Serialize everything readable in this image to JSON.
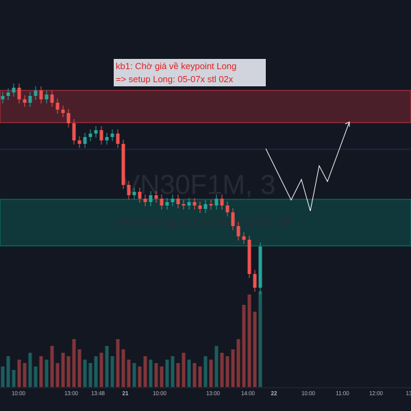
{
  "chart_data": {
    "type": "candlestick",
    "watermark": "VN30F1M, 3",
    "watermark_subtitle": "Hợp đồng tương lai VN30F1M",
    "annotation": [
      "kb1: Chờ giá về keypoint Long",
      "=> setup Long: 05-07x stl 02x"
    ],
    "xticks": [
      "10:00",
      "13:00",
      "13:48",
      "21",
      "10:00",
      "13:00",
      "14:00",
      "22",
      "10:00",
      "11:00",
      "12:00",
      "13"
    ],
    "open": [
      455,
      460,
      465,
      472,
      455,
      450,
      460,
      468,
      455,
      462,
      450,
      440,
      435,
      420,
      395,
      390,
      400,
      405,
      410,
      395,
      400,
      405,
      390,
      330,
      315,
      320,
      310,
      305,
      315,
      310,
      300,
      305,
      310,
      302,
      300,
      305,
      300,
      295,
      302,
      300,
      310,
      300,
      290,
      270,
      255,
      250,
      200,
      180
    ],
    "high": [
      466,
      471,
      478,
      478,
      461,
      466,
      474,
      474,
      468,
      468,
      456,
      446,
      441,
      426,
      401,
      406,
      411,
      416,
      416,
      406,
      411,
      411,
      396,
      336,
      326,
      326,
      316,
      321,
      321,
      316,
      311,
      316,
      316,
      308,
      311,
      311,
      306,
      308,
      308,
      316,
      316,
      306,
      296,
      276,
      261,
      256,
      206,
      246
    ],
    "low": [
      449,
      454,
      459,
      449,
      444,
      444,
      454,
      449,
      449,
      444,
      434,
      429,
      414,
      389,
      384,
      384,
      394,
      399,
      389,
      389,
      394,
      384,
      324,
      309,
      309,
      304,
      299,
      299,
      304,
      294,
      294,
      299,
      296,
      294,
      294,
      294,
      289,
      289,
      294,
      294,
      294,
      284,
      264,
      249,
      244,
      194,
      174,
      170
    ],
    "close": [
      460,
      465,
      472,
      455,
      450,
      460,
      468,
      455,
      462,
      450,
      440,
      435,
      420,
      395,
      390,
      400,
      405,
      410,
      395,
      400,
      405,
      390,
      330,
      315,
      320,
      310,
      305,
      315,
      310,
      300,
      305,
      310,
      302,
      300,
      305,
      300,
      295,
      302,
      300,
      310,
      300,
      290,
      270,
      255,
      250,
      200,
      180,
      240
    ],
    "volume": [
      30,
      45,
      25,
      40,
      35,
      50,
      30,
      45,
      40,
      60,
      35,
      50,
      45,
      70,
      55,
      40,
      35,
      45,
      50,
      60,
      45,
      70,
      55,
      40,
      35,
      30,
      45,
      40,
      35,
      30,
      40,
      45,
      35,
      50,
      40,
      35,
      30,
      45,
      40,
      60,
      50,
      45,
      55,
      70,
      120,
      135,
      110,
      140
    ],
    "ylim": [
      0,
      600
    ],
    "volume_ylim": [
      0,
      600
    ],
    "zones": [
      {
        "from": 421,
        "to": 468,
        "color": "#f23645"
      },
      {
        "from": 241,
        "to": 309,
        "color": "#089981"
      }
    ],
    "level": 382,
    "up_color": "#26a69a",
    "down_color": "#ef5350"
  }
}
